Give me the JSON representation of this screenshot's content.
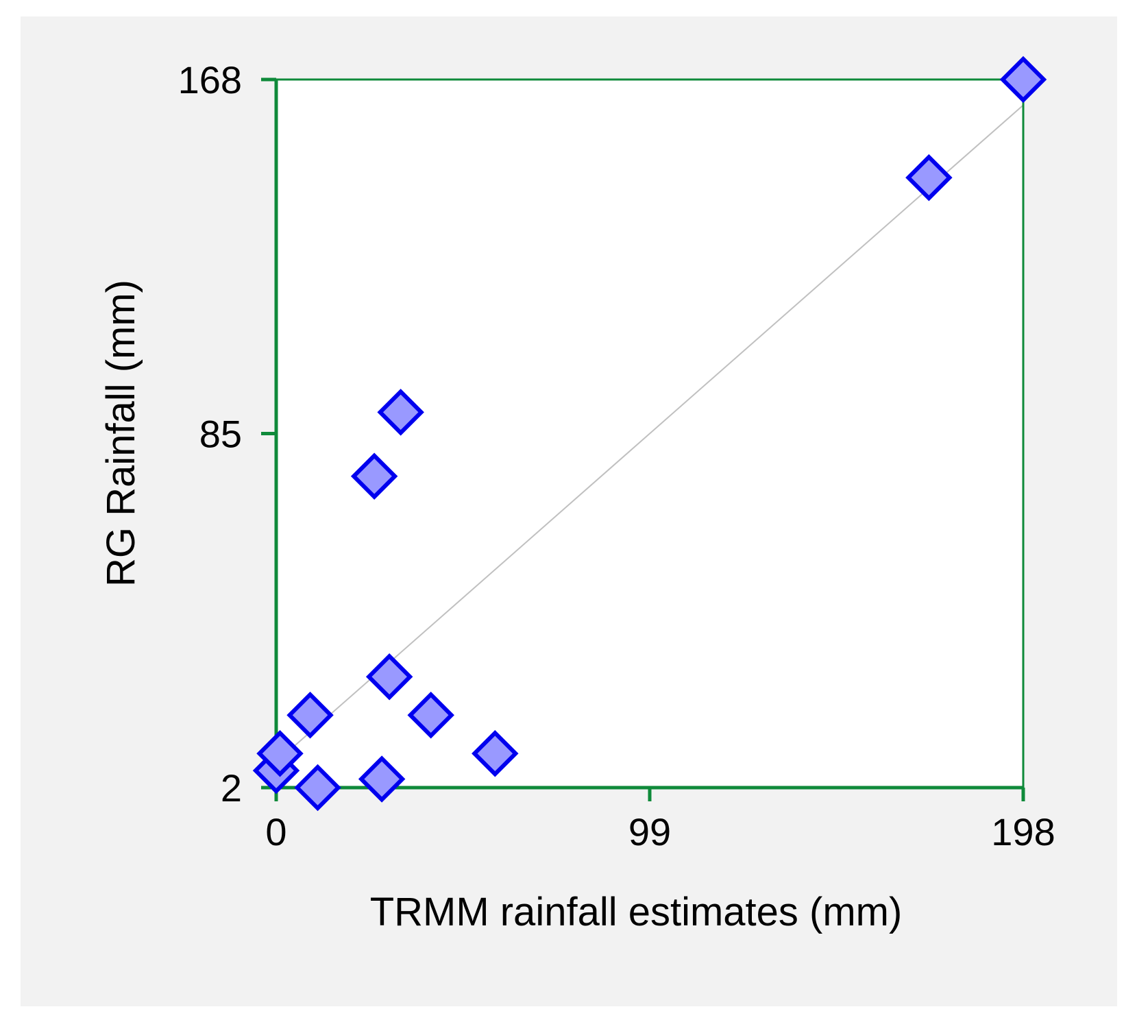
{
  "chart_data": {
    "type": "scatter",
    "title": "",
    "xlabel": "TRMM rainfall estimates (mm)",
    "ylabel": "RG Rainfall (mm)",
    "xlim": [
      0,
      198
    ],
    "ylim": [
      2,
      168
    ],
    "x_ticks": [
      "0",
      "99",
      "198"
    ],
    "y_ticks": [
      "2",
      "85",
      "168"
    ],
    "grid": false,
    "legend": "none",
    "series": [
      {
        "marker": "diamond",
        "points": [
          {
            "x": 0,
            "y": 6
          },
          {
            "x": 1,
            "y": 10
          },
          {
            "x": 11,
            "y": 2
          },
          {
            "x": 28,
            "y": 4
          },
          {
            "x": 9,
            "y": 19
          },
          {
            "x": 30,
            "y": 28
          },
          {
            "x": 41,
            "y": 19
          },
          {
            "x": 58,
            "y": 10
          },
          {
            "x": 26,
            "y": 75
          },
          {
            "x": 33,
            "y": 90
          },
          {
            "x": 173,
            "y": 145
          },
          {
            "x": 198,
            "y": 168
          }
        ]
      }
    ],
    "trendline": {
      "x": [
        0,
        198
      ],
      "y": [
        8,
        162
      ]
    },
    "colors": {
      "axes": "#0f8a3a",
      "marker_fill": "#9999ff",
      "marker_stroke": "#0000ee",
      "trendline": "#c0c0c0",
      "plot_background": "#ffffff",
      "panel_background": "#f2f2f2"
    }
  }
}
